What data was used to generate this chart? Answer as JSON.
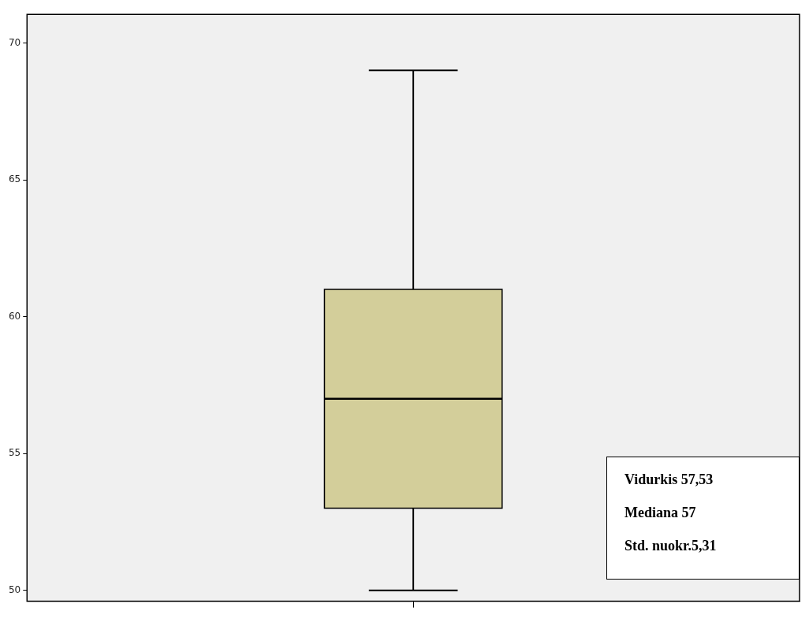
{
  "chart_data": {
    "type": "box",
    "categories": [
      null
    ],
    "boxes": [
      {
        "low": 50,
        "q1": 53,
        "median": 57,
        "q3": 61,
        "high": 69
      }
    ],
    "color": "#d3ce9a",
    "ylim": [
      49.6,
      71.05
    ],
    "yticks": [
      50,
      55,
      60,
      65,
      70
    ],
    "grid": false,
    "legend": false,
    "annotations": [
      "Vidurkis 57,53",
      "Mediana 57",
      "Std. nuokr.5,31"
    ]
  }
}
